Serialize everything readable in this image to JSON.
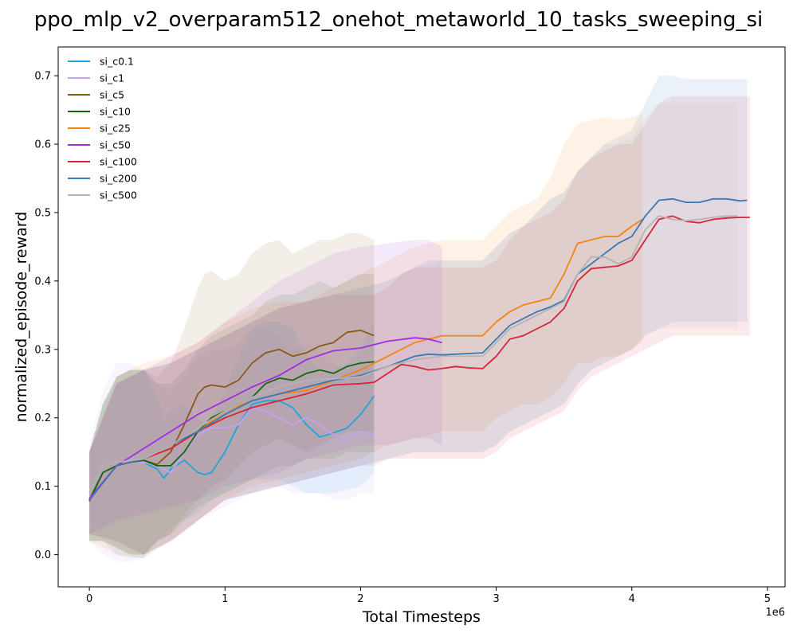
{
  "chart_data": {
    "type": "line",
    "title": "ppo_mlp_v2_overparam512_onehot_metaworld_10_tasks_sweeping_si",
    "xlabel": "Total Timesteps",
    "ylabel": "normalized_episode_reward",
    "x_multiplier_label": "1e6",
    "xlim": [
      -0.23,
      5.13
    ],
    "ylim": [
      -0.047,
      0.742
    ],
    "x_ticks": [
      0,
      1,
      2,
      3,
      4,
      5
    ],
    "x_tick_labels": [
      "0",
      "1",
      "2",
      "3",
      "4",
      "5"
    ],
    "y_ticks": [
      0.0,
      0.1,
      0.2,
      0.3,
      0.4,
      0.5,
      0.6,
      0.7
    ],
    "y_tick_labels": [
      "0.0",
      "0.1",
      "0.2",
      "0.3",
      "0.4",
      "0.5",
      "0.6",
      "0.7"
    ],
    "grid": false,
    "legend_position": "top-left",
    "series": [
      {
        "name": "si_c0.1",
        "color": "#1aa7e0",
        "x": [
          0,
          0.1,
          0.2,
          0.3,
          0.4,
          0.5,
          0.55,
          0.6,
          0.7,
          0.8,
          0.85,
          0.9,
          1.0,
          1.1,
          1.2,
          1.3,
          1.4,
          1.5,
          1.6,
          1.7,
          1.8,
          1.9,
          2.0,
          2.1
        ],
        "y": [
          0.08,
          0.12,
          0.13,
          0.135,
          0.135,
          0.125,
          0.112,
          0.125,
          0.138,
          0.12,
          0.117,
          0.12,
          0.15,
          0.19,
          0.22,
          0.225,
          0.225,
          0.215,
          0.19,
          0.172,
          0.178,
          0.185,
          0.205,
          0.232
        ],
        "lower": [
          0.02,
          0.02,
          0.0,
          -0.005,
          -0.005,
          0.02,
          0.03,
          0.04,
          0.05,
          0.06,
          0.07,
          0.08,
          0.09,
          0.1,
          0.11,
          0.11,
          0.11,
          0.1,
          0.09,
          0.09,
          0.09,
          0.095,
          0.1,
          0.12
        ],
        "upper": [
          0.15,
          0.22,
          0.26,
          0.27,
          0.27,
          0.23,
          0.2,
          0.21,
          0.22,
          0.2,
          0.19,
          0.2,
          0.24,
          0.29,
          0.33,
          0.34,
          0.34,
          0.33,
          0.29,
          0.27,
          0.27,
          0.28,
          0.3,
          0.34
        ]
      },
      {
        "name": "si_c1",
        "color": "#c79ff5",
        "x": [
          0,
          0.1,
          0.2,
          0.3,
          0.4,
          0.5,
          0.6,
          0.7,
          0.8,
          0.9,
          1.0,
          1.1,
          1.2,
          1.3,
          1.4,
          1.5,
          1.6,
          1.7,
          1.8,
          1.9,
          2.0,
          2.1
        ],
        "y": [
          0.08,
          0.12,
          0.13,
          0.135,
          0.135,
          0.13,
          0.12,
          0.15,
          0.175,
          0.185,
          0.185,
          0.19,
          0.215,
          0.21,
          0.2,
          0.19,
          0.2,
          0.19,
          0.175,
          0.17,
          0.18,
          0.175
        ],
        "lower": [
          0.02,
          0.0,
          -0.01,
          -0.01,
          -0.005,
          0.01,
          0.02,
          0.03,
          0.05,
          0.06,
          0.07,
          0.08,
          0.09,
          0.1,
          0.1,
          0.09,
          0.09,
          0.09,
          0.08,
          0.08,
          0.09,
          0.09
        ],
        "upper": [
          0.16,
          0.24,
          0.28,
          0.28,
          0.27,
          0.25,
          0.24,
          0.26,
          0.29,
          0.3,
          0.3,
          0.31,
          0.33,
          0.33,
          0.32,
          0.3,
          0.31,
          0.3,
          0.28,
          0.27,
          0.28,
          0.27
        ]
      },
      {
        "name": "si_c5",
        "color": "#8a5a12",
        "x": [
          0,
          0.1,
          0.2,
          0.3,
          0.4,
          0.5,
          0.6,
          0.7,
          0.8,
          0.85,
          0.9,
          1.0,
          1.1,
          1.2,
          1.3,
          1.4,
          1.5,
          1.6,
          1.7,
          1.8,
          1.9,
          2.0,
          2.1
        ],
        "y": [
          0.078,
          0.12,
          0.13,
          0.135,
          0.138,
          0.132,
          0.15,
          0.19,
          0.235,
          0.245,
          0.248,
          0.245,
          0.255,
          0.28,
          0.295,
          0.3,
          0.29,
          0.295,
          0.305,
          0.31,
          0.325,
          0.328,
          0.32
        ],
        "lower": [
          0.02,
          0.02,
          0.01,
          0.0,
          0.0,
          0.02,
          0.03,
          0.06,
          0.08,
          0.09,
          0.1,
          0.11,
          0.13,
          0.15,
          0.16,
          0.17,
          0.16,
          0.15,
          0.16,
          0.17,
          0.18,
          0.18,
          0.18
        ],
        "upper": [
          0.15,
          0.22,
          0.26,
          0.27,
          0.27,
          0.26,
          0.28,
          0.33,
          0.39,
          0.41,
          0.415,
          0.4,
          0.41,
          0.44,
          0.455,
          0.46,
          0.44,
          0.45,
          0.46,
          0.46,
          0.47,
          0.47,
          0.46
        ]
      },
      {
        "name": "si_c10",
        "color": "#0d6b0d",
        "x": [
          0,
          0.1,
          0.2,
          0.3,
          0.4,
          0.5,
          0.6,
          0.7,
          0.8,
          0.9,
          1.0,
          1.1,
          1.2,
          1.3,
          1.4,
          1.5,
          1.6,
          1.7,
          1.8,
          1.9,
          2.0,
          2.1
        ],
        "y": [
          0.08,
          0.12,
          0.13,
          0.135,
          0.138,
          0.13,
          0.13,
          0.15,
          0.18,
          0.2,
          0.21,
          0.22,
          0.23,
          0.25,
          0.258,
          0.255,
          0.265,
          0.27,
          0.265,
          0.275,
          0.28,
          0.282
        ],
        "lower": [
          0.02,
          0.02,
          0.01,
          0.0,
          0.0,
          0.02,
          0.03,
          0.05,
          0.07,
          0.08,
          0.09,
          0.1,
          0.11,
          0.12,
          0.13,
          0.13,
          0.14,
          0.14,
          0.14,
          0.15,
          0.15,
          0.15
        ],
        "upper": [
          0.15,
          0.22,
          0.26,
          0.27,
          0.27,
          0.25,
          0.25,
          0.27,
          0.3,
          0.32,
          0.33,
          0.34,
          0.35,
          0.37,
          0.38,
          0.38,
          0.39,
          0.4,
          0.39,
          0.4,
          0.41,
          0.41
        ]
      },
      {
        "name": "si_c25",
        "color": "#f5830e",
        "x": [
          0,
          0.2,
          0.4,
          0.6,
          0.8,
          1.0,
          1.2,
          1.4,
          1.6,
          1.8,
          2.0,
          2.2,
          2.4,
          2.6,
          2.8,
          2.9,
          3.0,
          3.1,
          3.2,
          3.3,
          3.4,
          3.5,
          3.6,
          3.7,
          3.8,
          3.9,
          4.0,
          4.08
        ],
        "y": [
          0.08,
          0.13,
          0.14,
          0.155,
          0.18,
          0.21,
          0.225,
          0.235,
          0.24,
          0.255,
          0.27,
          0.29,
          0.31,
          0.32,
          0.32,
          0.32,
          0.34,
          0.355,
          0.365,
          0.37,
          0.375,
          0.41,
          0.455,
          0.46,
          0.465,
          0.465,
          0.48,
          0.49
        ],
        "lower": [
          0.02,
          0.0,
          -0.005,
          0.02,
          0.05,
          0.08,
          0.1,
          0.11,
          0.12,
          0.13,
          0.14,
          0.16,
          0.17,
          0.18,
          0.18,
          0.18,
          0.2,
          0.21,
          0.22,
          0.22,
          0.23,
          0.25,
          0.28,
          0.28,
          0.29,
          0.29,
          0.3,
          0.31
        ],
        "upper": [
          0.15,
          0.26,
          0.28,
          0.29,
          0.31,
          0.34,
          0.36,
          0.37,
          0.37,
          0.39,
          0.41,
          0.43,
          0.45,
          0.46,
          0.46,
          0.46,
          0.48,
          0.5,
          0.51,
          0.52,
          0.55,
          0.6,
          0.63,
          0.635,
          0.64,
          0.635,
          0.64,
          0.645
        ]
      },
      {
        "name": "si_c50",
        "color": "#a12de0",
        "x": [
          0,
          0.2,
          0.4,
          0.6,
          0.8,
          1.0,
          1.2,
          1.4,
          1.6,
          1.8,
          2.0,
          2.2,
          2.4,
          2.5,
          2.6
        ],
        "y": [
          0.082,
          0.13,
          0.155,
          0.18,
          0.205,
          0.225,
          0.245,
          0.262,
          0.285,
          0.298,
          0.302,
          0.312,
          0.317,
          0.315,
          0.31
        ],
        "lower": [
          0.03,
          0.05,
          0.06,
          0.07,
          0.08,
          0.1,
          0.11,
          0.12,
          0.14,
          0.15,
          0.16,
          0.16,
          0.17,
          0.17,
          0.16
        ],
        "upper": [
          0.15,
          0.25,
          0.27,
          0.29,
          0.31,
          0.34,
          0.37,
          0.4,
          0.42,
          0.44,
          0.45,
          0.455,
          0.46,
          0.46,
          0.45
        ]
      },
      {
        "name": "si_c100",
        "color": "#d6253a",
        "x": [
          0,
          0.2,
          0.4,
          0.6,
          0.8,
          1.0,
          1.2,
          1.4,
          1.6,
          1.8,
          2.0,
          2.1,
          2.2,
          2.3,
          2.4,
          2.5,
          2.6,
          2.7,
          2.8,
          2.9,
          3.0,
          3.1,
          3.2,
          3.3,
          3.4,
          3.5,
          3.6,
          3.7,
          3.8,
          3.9,
          4.0,
          4.1,
          4.2,
          4.3,
          4.4,
          4.5,
          4.6,
          4.7,
          4.8,
          4.87
        ],
        "y": [
          0.08,
          0.13,
          0.14,
          0.155,
          0.18,
          0.2,
          0.215,
          0.225,
          0.235,
          0.248,
          0.25,
          0.252,
          0.265,
          0.278,
          0.275,
          0.27,
          0.272,
          0.275,
          0.273,
          0.272,
          0.29,
          0.315,
          0.32,
          0.33,
          0.34,
          0.36,
          0.4,
          0.418,
          0.42,
          0.422,
          0.43,
          0.46,
          0.49,
          0.495,
          0.487,
          0.485,
          0.49,
          0.492,
          0.493,
          0.493
        ],
        "lower": [
          0.03,
          0.02,
          0.0,
          0.02,
          0.05,
          0.08,
          0.09,
          0.1,
          0.11,
          0.12,
          0.13,
          0.13,
          0.14,
          0.14,
          0.14,
          0.14,
          0.14,
          0.14,
          0.14,
          0.14,
          0.15,
          0.17,
          0.18,
          0.19,
          0.2,
          0.21,
          0.24,
          0.26,
          0.27,
          0.28,
          0.29,
          0.3,
          0.31,
          0.32,
          0.32,
          0.32,
          0.32,
          0.32,
          0.32,
          0.32
        ],
        "upper": [
          0.15,
          0.25,
          0.27,
          0.28,
          0.3,
          0.32,
          0.34,
          0.36,
          0.37,
          0.38,
          0.38,
          0.38,
          0.39,
          0.41,
          0.42,
          0.42,
          0.42,
          0.42,
          0.42,
          0.42,
          0.43,
          0.46,
          0.48,
          0.49,
          0.5,
          0.52,
          0.56,
          0.58,
          0.59,
          0.6,
          0.6,
          0.63,
          0.66,
          0.67,
          0.67,
          0.67,
          0.67,
          0.67,
          0.67,
          0.67
        ]
      },
      {
        "name": "si_c200",
        "color": "#3878b8",
        "x": [
          0,
          0.2,
          0.4,
          0.6,
          0.8,
          1.0,
          1.2,
          1.4,
          1.6,
          1.8,
          2.0,
          2.2,
          2.4,
          2.5,
          2.6,
          2.7,
          2.8,
          2.9,
          3.0,
          3.1,
          3.2,
          3.3,
          3.4,
          3.5,
          3.6,
          3.7,
          3.8,
          3.9,
          4.0,
          4.1,
          4.2,
          4.3,
          4.4,
          4.5,
          4.6,
          4.7,
          4.8,
          4.85
        ],
        "y": [
          0.08,
          0.13,
          0.14,
          0.16,
          0.18,
          0.205,
          0.225,
          0.235,
          0.245,
          0.255,
          0.262,
          0.275,
          0.29,
          0.293,
          0.292,
          0.293,
          0.294,
          0.295,
          0.315,
          0.335,
          0.345,
          0.355,
          0.362,
          0.372,
          0.41,
          0.425,
          0.44,
          0.455,
          0.465,
          0.495,
          0.518,
          0.52,
          0.515,
          0.515,
          0.52,
          0.52,
          0.517,
          0.518
        ],
        "lower": [
          0.03,
          0.02,
          0.0,
          0.02,
          0.05,
          0.08,
          0.09,
          0.1,
          0.11,
          0.12,
          0.13,
          0.14,
          0.15,
          0.15,
          0.15,
          0.15,
          0.15,
          0.15,
          0.16,
          0.18,
          0.19,
          0.2,
          0.21,
          0.22,
          0.25,
          0.27,
          0.28,
          0.29,
          0.3,
          0.32,
          0.33,
          0.34,
          0.34,
          0.34,
          0.34,
          0.34,
          0.34,
          0.34
        ],
        "upper": [
          0.15,
          0.25,
          0.27,
          0.28,
          0.3,
          0.32,
          0.34,
          0.36,
          0.37,
          0.38,
          0.39,
          0.4,
          0.42,
          0.43,
          0.43,
          0.43,
          0.43,
          0.43,
          0.45,
          0.47,
          0.48,
          0.5,
          0.52,
          0.53,
          0.56,
          0.58,
          0.6,
          0.61,
          0.62,
          0.66,
          0.7,
          0.7,
          0.695,
          0.695,
          0.695,
          0.695,
          0.695,
          0.695
        ]
      },
      {
        "name": "si_c500",
        "color": "#b3b3b3",
        "x": [
          0,
          0.1,
          0.2,
          0.4,
          0.6,
          0.8,
          1.0,
          1.2,
          1.4,
          1.6,
          1.8,
          2.0,
          2.2,
          2.4,
          2.6,
          2.8,
          2.9,
          3.0,
          3.1,
          3.2,
          3.3,
          3.4,
          3.5,
          3.6,
          3.7,
          3.8,
          3.9,
          4.0,
          4.1,
          4.2,
          4.3,
          4.4,
          4.5,
          4.6,
          4.7,
          4.78
        ],
        "y": [
          0.092,
          0.13,
          0.135,
          0.14,
          0.16,
          0.185,
          0.21,
          0.23,
          0.245,
          0.255,
          0.257,
          0.26,
          0.275,
          0.285,
          0.29,
          0.29,
          0.29,
          0.31,
          0.33,
          0.34,
          0.35,
          0.36,
          0.37,
          0.41,
          0.435,
          0.435,
          0.425,
          0.435,
          0.475,
          0.495,
          0.49,
          0.488,
          0.49,
          0.493,
          0.495,
          0.495
        ],
        "lower": [
          0.04,
          0.02,
          0.01,
          0.0,
          0.02,
          0.05,
          0.08,
          0.09,
          0.1,
          0.11,
          0.12,
          0.13,
          0.14,
          0.15,
          0.15,
          0.15,
          0.15,
          0.16,
          0.18,
          0.19,
          0.2,
          0.21,
          0.22,
          0.25,
          0.27,
          0.28,
          0.29,
          0.3,
          0.32,
          0.33,
          0.33,
          0.33,
          0.33,
          0.33,
          0.33,
          0.33
        ],
        "upper": [
          0.15,
          0.22,
          0.25,
          0.27,
          0.28,
          0.3,
          0.32,
          0.34,
          0.36,
          0.37,
          0.38,
          0.39,
          0.4,
          0.42,
          0.43,
          0.43,
          0.43,
          0.45,
          0.47,
          0.48,
          0.5,
          0.52,
          0.53,
          0.56,
          0.58,
          0.6,
          0.6,
          0.61,
          0.64,
          0.66,
          0.66,
          0.66,
          0.66,
          0.66,
          0.66,
          0.66
        ]
      }
    ]
  }
}
